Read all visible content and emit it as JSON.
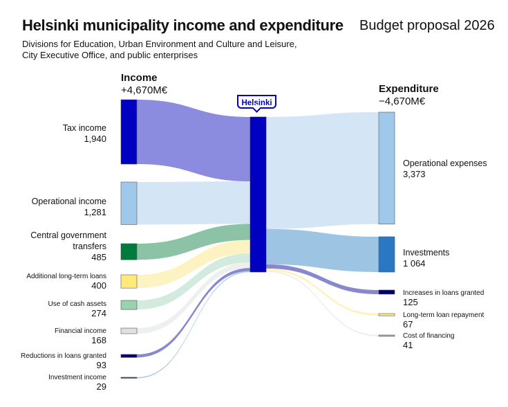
{
  "header": {
    "title": "Helsinki municipality income and expenditure",
    "budget": "Budget proposal 2026",
    "subtitle": "Divisions for Education, Urban Environment and Culture and Leisure, City Executive Office, and public enterprises"
  },
  "income_head": {
    "label": "Income",
    "total": "+4,670M€"
  },
  "expenditure_head": {
    "label": "Expenditure",
    "total": "−4,670M€"
  },
  "center_label": "Helsinki",
  "chart_data": {
    "type": "sankey",
    "unit": "M€",
    "center": "Helsinki",
    "income": [
      {
        "name": "Tax income",
        "value": 1940,
        "display": "1,940",
        "color": "#0000c0",
        "flow_color": "#8b8be0"
      },
      {
        "name": "Operational income",
        "value": 1281,
        "display": "1,281",
        "color": "#a0c8ea",
        "flow_color": "#d4e6f5"
      },
      {
        "name": "Central government transfers",
        "value": 485,
        "display": "485",
        "color": "#007a3d",
        "flow_color": "#8cc3a6"
      },
      {
        "name": "Additional long-term loans",
        "value": 400,
        "display": "400",
        "color": "#ffe97a",
        "flow_color": "#fdf3c2"
      },
      {
        "name": "Use of cash assets",
        "value": 274,
        "display": "274",
        "color": "#9ad0b0",
        "flow_color": "#d3ebdf"
      },
      {
        "name": "Financial income",
        "value": 168,
        "display": "168",
        "color": "#e0e0e0",
        "flow_color": "#eeefef"
      },
      {
        "name": "Reductions in loans granted",
        "value": 93,
        "display": "93",
        "color": "#000070",
        "flow_color": "#8a88cc"
      },
      {
        "name": "Investment income",
        "value": 29,
        "display": "29",
        "color": "#1f4e79",
        "flow_color": "#9ec8ee"
      }
    ],
    "expenditure": [
      {
        "name": "Operational expenses",
        "value": 3373,
        "display": "3,373",
        "color": "#a0c8ea",
        "flow_color": "#d4e6f5"
      },
      {
        "name": "Investments",
        "value": 1064,
        "display": "1 064",
        "color": "#2a78c4",
        "flow_color": "#9ec4e4"
      },
      {
        "name": "Increases in loans granted",
        "value": 125,
        "display": "125",
        "color": "#000070",
        "flow_color": "#8a88cc"
      },
      {
        "name": "Long-term loan repayment",
        "value": 67,
        "display": "67",
        "color": "#ffe97a",
        "flow_color": "#fdf3c2"
      },
      {
        "name": "Cost of financing",
        "value": 41,
        "display": "41",
        "color": "#b0b0b0",
        "flow_color": "#eeeeee"
      }
    ],
    "center_color": "#0000c0"
  }
}
